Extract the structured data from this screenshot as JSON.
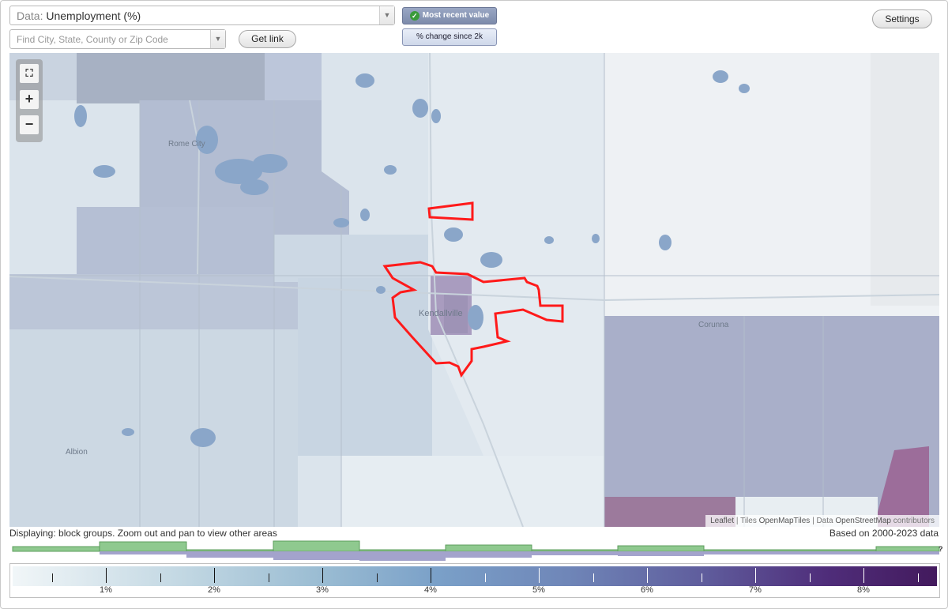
{
  "toolbar": {
    "data_label": "Data:",
    "data_value": "Unemployment (%)",
    "search_placeholder": "Find City, State, County or Zip Code",
    "get_link": "Get link",
    "most_recent": "Most recent value",
    "pct_change": "% change since 2k",
    "settings": "Settings"
  },
  "map": {
    "places": [
      "Rome City",
      "Kendallville",
      "Corunna",
      "Albion"
    ],
    "attribution": {
      "leaflet": "Leaflet",
      "tiles_prefix": "Tiles",
      "tiles": "OpenMapTiles",
      "data_prefix": "Data",
      "data": "OpenStreetMap",
      "suffix": "contributors"
    },
    "highlight_color": "#ff0000"
  },
  "status_text": "Displaying: block groups. Zoom out and pan to view other areas",
  "based_on": "Based on 2000-2023 data",
  "histogram": {
    "help": "?",
    "green": "#8fc98f",
    "purple": "#a3a3cc"
  },
  "legend": {
    "labels": [
      "1%",
      "2%",
      "3%",
      "4%",
      "5%",
      "6%",
      "7%",
      "8%"
    ]
  }
}
